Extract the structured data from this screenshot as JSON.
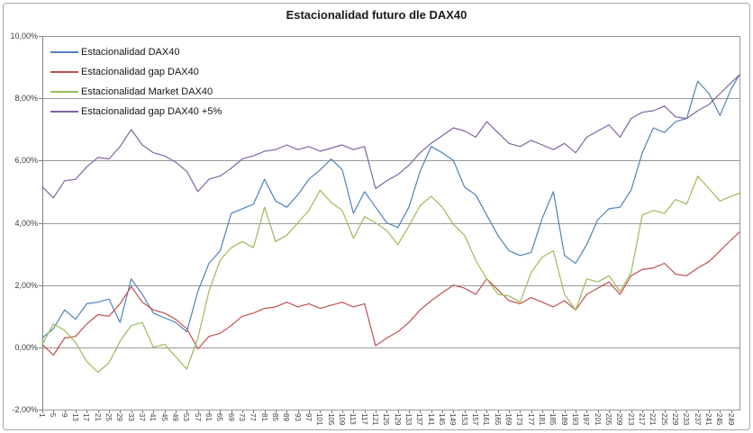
{
  "chart": {
    "title": "Estacionalidad futuro dle DAX40",
    "y_tick_labels": [
      "10,00%",
      "8,00%",
      "6,00%",
      "4,00%",
      "2,00%",
      "0,00%",
      "-2,00%"
    ],
    "colors": {
      "grid": "#999999",
      "plot_border": "#808080",
      "axis_text": "#3d3d3d"
    }
  },
  "chart_data": {
    "type": "line",
    "title": "Estacionalidad futuro dle DAX40",
    "xlabel": "",
    "ylabel": "",
    "ylim": [
      -2,
      10
    ],
    "xlim": [
      1,
      252
    ],
    "grid": true,
    "legend_position": "top-left-inside",
    "y_ticks": [
      10,
      8,
      6,
      4,
      2,
      0,
      -2
    ],
    "x_ticks": [
      1,
      5,
      9,
      13,
      17,
      21,
      25,
      29,
      33,
      37,
      41,
      45,
      49,
      53,
      57,
      61,
      65,
      69,
      73,
      77,
      81,
      85,
      89,
      93,
      97,
      101,
      105,
      109,
      113,
      117,
      121,
      125,
      129,
      133,
      137,
      141,
      145,
      149,
      153,
      157,
      161,
      165,
      169,
      173,
      177,
      181,
      185,
      189,
      193,
      197,
      201,
      205,
      209,
      213,
      217,
      221,
      225,
      229,
      233,
      237,
      241,
      245,
      249
    ],
    "x_tick_labels": [
      "1",
      "5",
      "9",
      "13",
      "17",
      "21",
      "25",
      "29",
      "33",
      "37",
      "41",
      "45",
      "49",
      "53",
      "57",
      "61",
      "65",
      "69",
      "73",
      "77",
      "81",
      "85",
      "89",
      "93",
      "97",
      "101",
      "105",
      "109",
      "113",
      "117",
      "121",
      "125",
      "129",
      "133",
      "137",
      "141",
      "145",
      "149",
      "153",
      "157",
      "161",
      "165",
      "169",
      "173",
      "177",
      "181",
      "185",
      "189",
      "193",
      "197",
      "201",
      "205",
      "209",
      "213",
      "217",
      "221",
      "225",
      "229",
      "233",
      "237",
      "241",
      "245",
      "249"
    ],
    "x": [
      1,
      5,
      9,
      13,
      17,
      21,
      25,
      29,
      33,
      37,
      41,
      45,
      49,
      53,
      57,
      61,
      65,
      69,
      73,
      77,
      81,
      85,
      89,
      93,
      97,
      101,
      105,
      109,
      113,
      117,
      121,
      125,
      129,
      133,
      137,
      141,
      145,
      149,
      153,
      157,
      161,
      165,
      169,
      173,
      177,
      181,
      185,
      189,
      193,
      197,
      201,
      205,
      209,
      213,
      217,
      221,
      225,
      229,
      233,
      237,
      241,
      245,
      249,
      252
    ],
    "series": [
      {
        "name": "Estacionalidad DAX40",
        "color": "#4F81BD",
        "values": [
          0.3,
          0.6,
          1.2,
          0.9,
          1.4,
          1.45,
          1.55,
          0.8,
          2.2,
          1.7,
          1.1,
          0.95,
          0.8,
          0.5,
          1.8,
          2.7,
          3.1,
          4.3,
          4.45,
          4.6,
          5.4,
          4.7,
          4.5,
          4.9,
          5.4,
          5.7,
          6.05,
          5.7,
          4.3,
          5.0,
          4.5,
          4.0,
          3.85,
          4.5,
          5.65,
          6.45,
          6.25,
          6.0,
          5.15,
          4.9,
          4.25,
          3.6,
          3.1,
          2.95,
          3.05,
          4.15,
          5.0,
          2.95,
          2.7,
          3.3,
          4.1,
          4.45,
          4.5,
          5.05,
          6.25,
          7.05,
          6.9,
          7.25,
          7.35,
          8.55,
          8.15,
          7.45,
          8.3,
          8.75
        ]
      },
      {
        "name": "Estacionalidad gap DAX40",
        "color": "#C0504D",
        "values": [
          0.1,
          -0.25,
          0.3,
          0.35,
          0.75,
          1.05,
          1.0,
          1.4,
          1.95,
          1.45,
          1.2,
          1.1,
          0.9,
          0.6,
          -0.05,
          0.35,
          0.45,
          0.7,
          1.0,
          1.1,
          1.25,
          1.3,
          1.45,
          1.3,
          1.4,
          1.25,
          1.35,
          1.45,
          1.3,
          1.4,
          0.05,
          0.3,
          0.5,
          0.8,
          1.2,
          1.5,
          1.75,
          2.0,
          1.9,
          1.7,
          2.2,
          1.85,
          1.5,
          1.4,
          1.6,
          1.45,
          1.3,
          1.5,
          1.2,
          1.7,
          1.9,
          2.1,
          1.7,
          2.3,
          2.5,
          2.55,
          2.7,
          2.35,
          2.3,
          2.55,
          2.75,
          3.1,
          3.45,
          3.7
        ]
      },
      {
        "name": "Estacionalidad Market DAX40",
        "color": "#9BBB59",
        "values": [
          0.1,
          0.75,
          0.55,
          0.15,
          -0.45,
          -0.8,
          -0.5,
          0.2,
          0.7,
          0.8,
          0.0,
          0.1,
          -0.3,
          -0.7,
          0.3,
          1.8,
          2.8,
          3.2,
          3.4,
          3.2,
          4.5,
          3.4,
          3.6,
          4.0,
          4.4,
          5.05,
          4.65,
          4.4,
          3.5,
          4.2,
          4.0,
          3.75,
          3.3,
          3.9,
          4.55,
          4.85,
          4.5,
          3.95,
          3.6,
          2.8,
          2.2,
          1.7,
          1.65,
          1.45,
          2.4,
          2.9,
          3.1,
          1.7,
          1.2,
          2.2,
          2.1,
          2.3,
          1.8,
          2.4,
          4.25,
          4.4,
          4.3,
          4.75,
          4.6,
          5.5,
          5.1,
          4.7,
          4.85,
          4.95
        ]
      },
      {
        "name": "Estacionalidad gap DAX40 +5%",
        "color": "#8064A2",
        "values": [
          5.15,
          4.8,
          5.35,
          5.4,
          5.8,
          6.1,
          6.05,
          6.45,
          7.0,
          6.5,
          6.25,
          6.15,
          5.95,
          5.65,
          5.0,
          5.4,
          5.5,
          5.75,
          6.05,
          6.15,
          6.3,
          6.35,
          6.5,
          6.35,
          6.45,
          6.3,
          6.4,
          6.5,
          6.35,
          6.45,
          5.1,
          5.35,
          5.55,
          5.85,
          6.25,
          6.55,
          6.8,
          7.05,
          6.95,
          6.75,
          7.25,
          6.9,
          6.55,
          6.45,
          6.65,
          6.5,
          6.35,
          6.55,
          6.25,
          6.75,
          6.95,
          7.15,
          6.75,
          7.35,
          7.55,
          7.6,
          7.75,
          7.4,
          7.35,
          7.6,
          7.8,
          8.15,
          8.5,
          8.75
        ]
      }
    ]
  }
}
